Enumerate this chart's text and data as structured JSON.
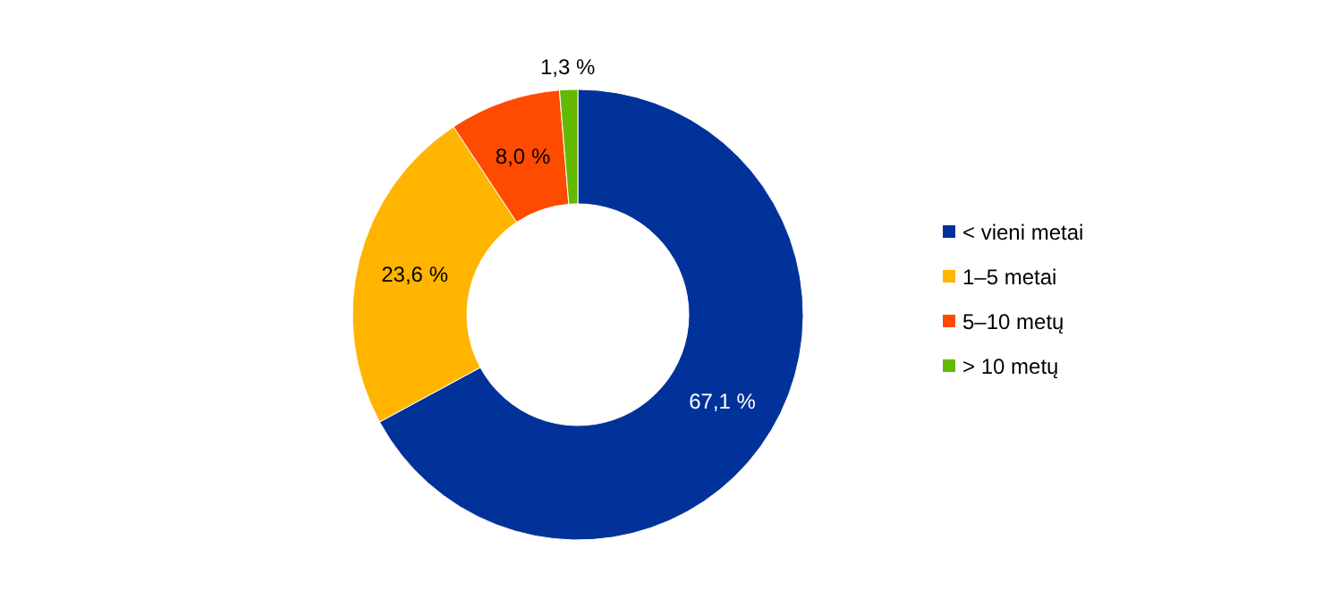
{
  "chart_data": {
    "type": "donut",
    "categories": [
      "< vieni metai",
      "1–5 metai",
      "5–10 metų",
      "> 10 metų"
    ],
    "values": [
      67.1,
      23.6,
      8.0,
      1.3
    ],
    "colors": [
      "#003299",
      "#ffb400",
      "#ff4b00",
      "#65b800"
    ],
    "value_labels": [
      "67,1 %",
      "23,6 %",
      "8,0 %",
      "1,3 %"
    ],
    "legend": "right"
  }
}
